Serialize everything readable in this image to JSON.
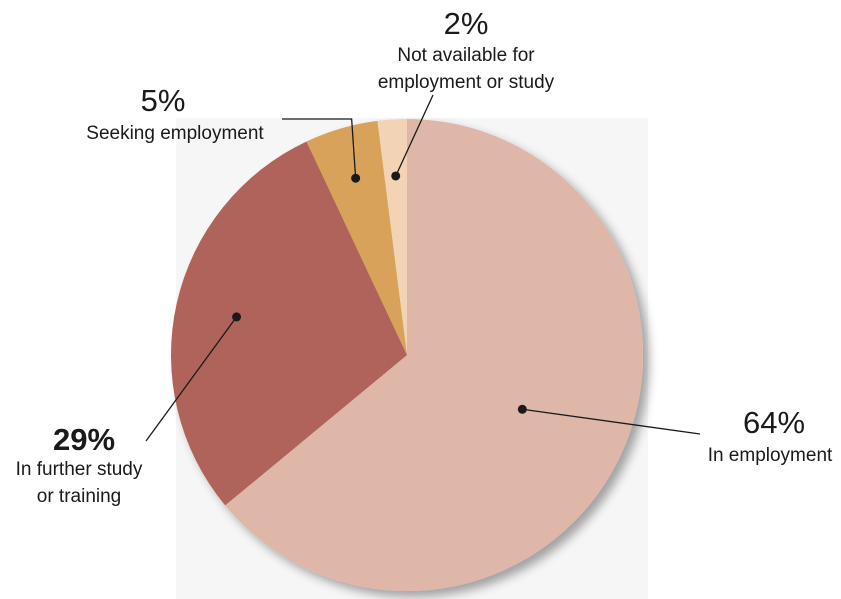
{
  "chart_data": {
    "type": "pie",
    "title": "",
    "slices": [
      {
        "value_label": "64%",
        "label_lines": [
          "In employment"
        ],
        "value": 64,
        "color": "#dfb7a8"
      },
      {
        "value_label": "29%",
        "label_lines": [
          "In further study",
          "or training"
        ],
        "value": 29,
        "color": "#b0645a"
      },
      {
        "value_label": "5%",
        "label_lines": [
          "Seeking employment"
        ],
        "value": 5,
        "color": "#d9a25a"
      },
      {
        "value_label": "2%",
        "label_lines": [
          "Not available for",
          "employment or study"
        ],
        "value": 2,
        "color": "#f2d3b5"
      }
    ],
    "legend": "none",
    "labels": "outside-with-leader-lines"
  }
}
